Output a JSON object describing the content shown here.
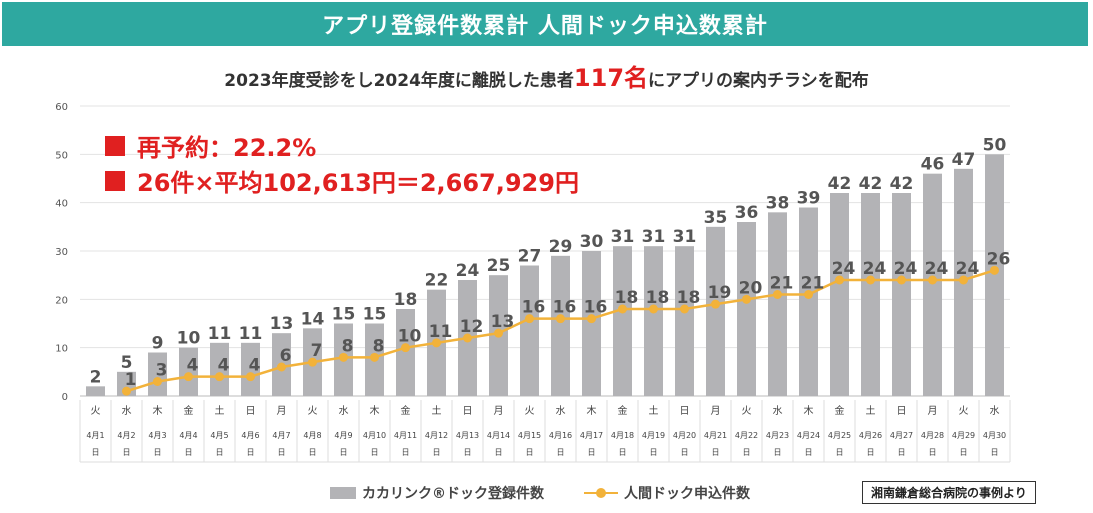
{
  "header": {
    "title": "アプリ登録件数累計 人間ドック申込数累計",
    "subtitle_pre": "2023年度受診をし2024年度に離脱した患者",
    "subtitle_highlight": "117名",
    "subtitle_post": "にアプリの案内チラシを配布"
  },
  "annotations": [
    "再予約：22.2%",
    "26件×平均102,613円＝2,667,929円"
  ],
  "source_note": "湘南鎌倉総合病院の事例より",
  "colors": {
    "banner": "#2ea8a0",
    "bar": "#b3b3b6",
    "line": "#f2b23a",
    "highlight": "#e02020"
  },
  "chart_data": {
    "type": "bar",
    "ylim": [
      0,
      60
    ],
    "yticks": [
      0,
      10,
      20,
      30,
      40,
      50,
      60
    ],
    "grid": true,
    "legend_position": "bottom",
    "weekdays": [
      "火",
      "水",
      "木",
      "金",
      "土",
      "日",
      "月",
      "火",
      "水",
      "木",
      "金",
      "土",
      "日",
      "月",
      "火",
      "水",
      "木",
      "金",
      "土",
      "日",
      "月",
      "火",
      "水",
      "木",
      "金",
      "土",
      "日",
      "月",
      "火",
      "水"
    ],
    "categories": [
      "4月1日",
      "4月2日",
      "4月3日",
      "4月4日",
      "4月5日",
      "4月6日",
      "4月7日",
      "4月8日",
      "4月9日",
      "4月10日",
      "4月11日",
      "4月12日",
      "4月13日",
      "4月14日",
      "4月15日",
      "4月16日",
      "4月17日",
      "4月18日",
      "4月19日",
      "4月20日",
      "4月21日",
      "4月22日",
      "4月23日",
      "4月24日",
      "4月25日",
      "4月26日",
      "4月27日",
      "4月28日",
      "4月29日",
      "4月30日"
    ],
    "series": [
      {
        "name": "カカリンク®ドック登録件数",
        "type": "bar",
        "values": [
          2,
          5,
          9,
          10,
          11,
          11,
          13,
          14,
          15,
          15,
          18,
          22,
          24,
          25,
          27,
          29,
          30,
          31,
          31,
          31,
          35,
          36,
          38,
          39,
          42,
          42,
          42,
          46,
          47,
          50
        ]
      },
      {
        "name": "人間ドック申込件数",
        "type": "line",
        "values": [
          null,
          1,
          3,
          4,
          4,
          4,
          6,
          7,
          8,
          8,
          10,
          11,
          12,
          13,
          16,
          16,
          16,
          18,
          18,
          18,
          19,
          20,
          21,
          21,
          24,
          24,
          24,
          24,
          24,
          26
        ]
      }
    ]
  }
}
